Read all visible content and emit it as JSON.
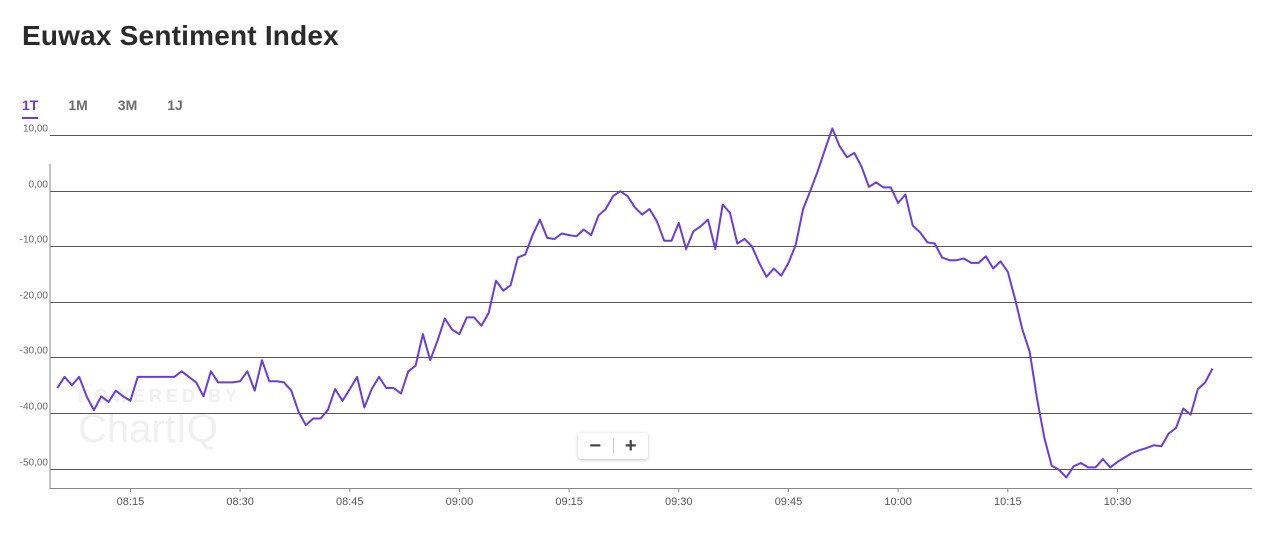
{
  "title": "Euwax Sentiment Index",
  "periods": [
    "1T",
    "1M",
    "3M",
    "1J"
  ],
  "active_period": "1T",
  "zoom": {
    "minus": "−",
    "plus": "+"
  },
  "watermark": {
    "line1": "POWERED BY",
    "line2": "ChartIQ"
  },
  "colors": {
    "line": "#6a3ce0",
    "grid": "#555555",
    "accent": "#6a3ce0"
  },
  "chart_data": {
    "type": "line",
    "title": "Euwax Sentiment Index",
    "y_ticks": [
      "10,00",
      "0,00",
      "-10,00",
      "-20,00",
      "-30,00",
      "-40,00",
      "-50,00"
    ],
    "x_ticks": [
      "08:15",
      "08:30",
      "08:45",
      "09:00",
      "09:15",
      "09:30",
      "09:45",
      "10:00",
      "10:15",
      "10:30"
    ],
    "ylim": [
      -53.5,
      12
    ],
    "xlim": [
      "08:04",
      "10:41"
    ],
    "grid": "horizontal",
    "series": [
      {
        "points": [
          [
            "08:05",
            -35.5
          ],
          [
            "08:06",
            -33.5
          ],
          [
            "08:07",
            -35
          ],
          [
            "08:08",
            -33.5
          ],
          [
            "08:09",
            -37
          ],
          [
            "08:10",
            -39.5
          ],
          [
            "08:11",
            -37
          ],
          [
            "08:12",
            -38
          ],
          [
            "08:13",
            -36
          ],
          [
            "08:14",
            -37
          ],
          [
            "08:15",
            -37.8
          ],
          [
            "08:16",
            -33.5
          ],
          [
            "08:17",
            -33.5
          ],
          [
            "08:18",
            -33.5
          ],
          [
            "08:19",
            -33.5
          ],
          [
            "08:20",
            -33.5
          ],
          [
            "08:21",
            -33.5
          ],
          [
            "08:22",
            -32.5
          ],
          [
            "08:23",
            -33.5
          ],
          [
            "08:24",
            -34.5
          ],
          [
            "08:25",
            -37
          ],
          [
            "08:26",
            -32.5
          ],
          [
            "08:27",
            -34.5
          ],
          [
            "08:28",
            -34.5
          ],
          [
            "08:29",
            -34.5
          ],
          [
            "08:30",
            -34.3
          ],
          [
            "08:31",
            -32.5
          ],
          [
            "08:32",
            -36
          ],
          [
            "08:33",
            -30.5
          ],
          [
            "08:34",
            -34.3
          ],
          [
            "08:35",
            -34.3
          ],
          [
            "08:36",
            -34.5
          ],
          [
            "08:37",
            -36
          ],
          [
            "08:38",
            -39.8
          ],
          [
            "08:39",
            -42.2
          ],
          [
            "08:40",
            -41
          ],
          [
            "08:41",
            -41
          ],
          [
            "08:42",
            -39.5
          ],
          [
            "08:43",
            -35.7
          ],
          [
            "08:44",
            -37.8
          ],
          [
            "08:45",
            -35.7
          ],
          [
            "08:46",
            -33.5
          ],
          [
            "08:47",
            -39
          ],
          [
            "08:48",
            -35.7
          ],
          [
            "08:49",
            -33.5
          ],
          [
            "08:50",
            -35.5
          ],
          [
            "08:51",
            -35.5
          ],
          [
            "08:52",
            -36.5
          ],
          [
            "08:53",
            -32.5
          ],
          [
            "08:54",
            -31.5
          ],
          [
            "08:55",
            -25.8
          ],
          [
            "08:56",
            -30.5
          ],
          [
            "08:57",
            -27
          ],
          [
            "08:58",
            -23
          ],
          [
            "08:59",
            -25
          ],
          [
            "09:00",
            -25.8
          ],
          [
            "09:01",
            -22.8
          ],
          [
            "09:02",
            -22.8
          ],
          [
            "09:03",
            -24.3
          ],
          [
            "09:04",
            -22
          ],
          [
            "09:05",
            -16.2
          ],
          [
            "09:06",
            -18
          ],
          [
            "09:07",
            -17
          ],
          [
            "09:08",
            -12
          ],
          [
            "09:09",
            -11.5
          ],
          [
            "09:10",
            -8
          ],
          [
            "09:11",
            -5.2
          ],
          [
            "09:12",
            -8.5
          ],
          [
            "09:13",
            -8.7
          ],
          [
            "09:14",
            -7.7
          ],
          [
            "09:15",
            -8
          ],
          [
            "09:16",
            -8.2
          ],
          [
            "09:17",
            -7
          ],
          [
            "09:18",
            -8
          ],
          [
            "09:19",
            -4.5
          ],
          [
            "09:20",
            -3.3
          ],
          [
            "09:21",
            -1
          ],
          [
            "09:22",
            -0.1
          ],
          [
            "09:23",
            -1
          ],
          [
            "09:24",
            -3
          ],
          [
            "09:25",
            -4.3
          ],
          [
            "09:26",
            -3.3
          ],
          [
            "09:27",
            -5.5
          ],
          [
            "09:28",
            -9
          ],
          [
            "09:29",
            -9
          ],
          [
            "09:30",
            -5.8
          ],
          [
            "09:31",
            -10.5
          ],
          [
            "09:32",
            -7.3
          ],
          [
            "09:33",
            -6.4
          ],
          [
            "09:34",
            -5.2
          ],
          [
            "09:35",
            -10.5
          ],
          [
            "09:36",
            -2.5
          ],
          [
            "09:37",
            -4
          ],
          [
            "09:38",
            -9.5
          ],
          [
            "09:39",
            -8.7
          ],
          [
            "09:40",
            -10
          ],
          [
            "09:41",
            -13
          ],
          [
            "09:42",
            -15.5
          ],
          [
            "09:43",
            -14
          ],
          [
            "09:44",
            -15.3
          ],
          [
            "09:45",
            -13
          ],
          [
            "09:46",
            -9.7
          ],
          [
            "09:47",
            -3.3
          ],
          [
            "09:48",
            0
          ],
          [
            "09:49",
            3.5
          ],
          [
            "09:50",
            7.4
          ],
          [
            "09:51",
            11.2
          ],
          [
            "09:52",
            8
          ],
          [
            "09:53",
            6
          ],
          [
            "09:54",
            6.8
          ],
          [
            "09:55",
            4.3
          ],
          [
            "09:56",
            0.7
          ],
          [
            "09:57",
            1.5
          ],
          [
            "09:58",
            0.6
          ],
          [
            "09:59",
            0.6
          ],
          [
            "10:00",
            -2.2
          ],
          [
            "10:01",
            -0.7
          ],
          [
            "10:02",
            -6.3
          ],
          [
            "10:03",
            -7.5
          ],
          [
            "10:04",
            -9.3
          ],
          [
            "10:05",
            -9.5
          ],
          [
            "10:06",
            -12
          ],
          [
            "10:07",
            -12.5
          ],
          [
            "10:08",
            -12.5
          ],
          [
            "10:09",
            -12.2
          ],
          [
            "10:10",
            -13
          ],
          [
            "10:11",
            -13
          ],
          [
            "10:12",
            -11.8
          ],
          [
            "10:13",
            -14
          ],
          [
            "10:14",
            -12.7
          ],
          [
            "10:15",
            -14.6
          ],
          [
            "10:16",
            -19.5
          ],
          [
            "10:17",
            -25
          ],
          [
            "10:18",
            -29
          ],
          [
            "10:19",
            -37.5
          ],
          [
            "10:20",
            -44.5
          ],
          [
            "10:21",
            -49.5
          ],
          [
            "10:22",
            -50.2
          ],
          [
            "10:23",
            -51.6
          ],
          [
            "10:24",
            -49.6
          ],
          [
            "10:25",
            -49
          ],
          [
            "10:26",
            -49.8
          ],
          [
            "10:27",
            -49.8
          ],
          [
            "10:28",
            -48.3
          ],
          [
            "10:29",
            -49.8
          ],
          [
            "10:30",
            -48.8
          ],
          [
            "10:31",
            -48
          ],
          [
            "10:32",
            -47.2
          ],
          [
            "10:33",
            -46.7
          ],
          [
            "10:34",
            -46.3
          ],
          [
            "10:35",
            -45.8
          ],
          [
            "10:36",
            -46
          ],
          [
            "10:37",
            -43.7
          ],
          [
            "10:38",
            -42.7
          ],
          [
            "10:39",
            -39.2
          ],
          [
            "10:40",
            -40.3
          ],
          [
            "10:41",
            -35.7
          ],
          [
            "10:42",
            -34.5
          ],
          [
            "10:43",
            -32
          ]
        ]
      }
    ]
  }
}
